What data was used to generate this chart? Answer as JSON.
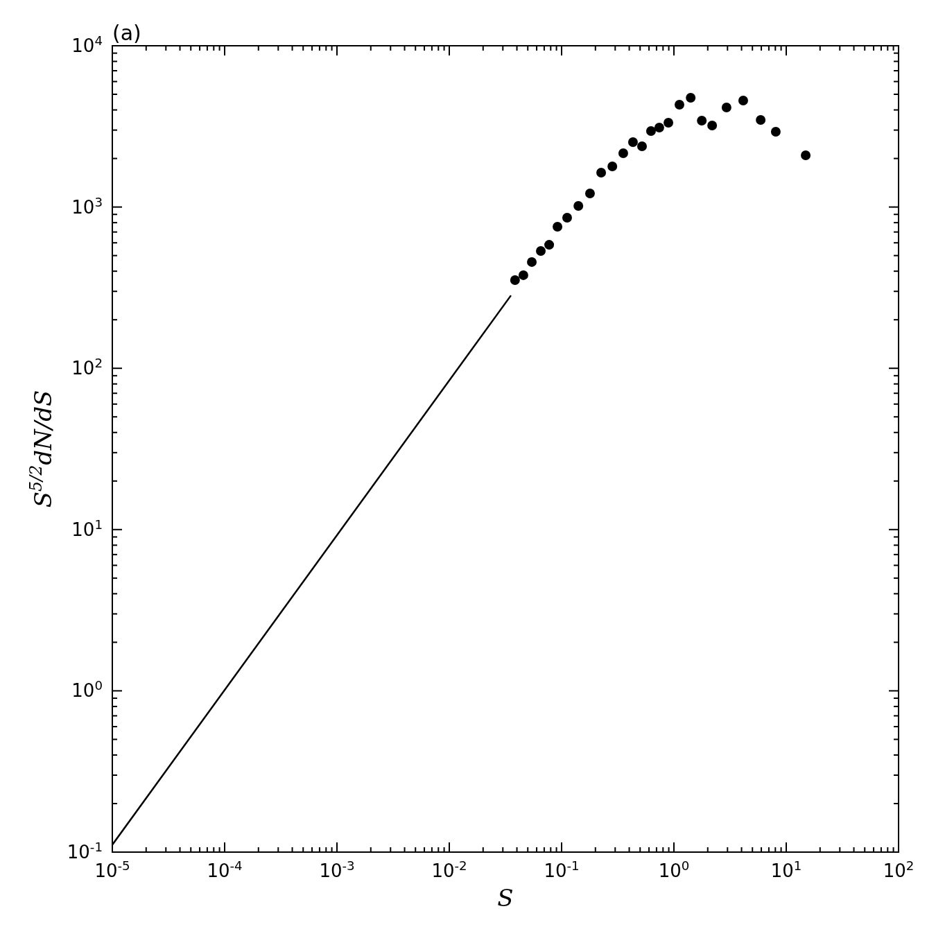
{
  "chart_data": {
    "type": "scatter",
    "xlabel": "S",
    "ylabel": "S$^{5/2}$dN/dS",
    "annotations": [
      "(a)"
    ],
    "log": "xy",
    "marker": "circle",
    "xlim": [
      1e-05,
      100
    ],
    "ylim": [
      0.1,
      10000
    ],
    "xticks": [
      {
        "value": 1e-05,
        "label": "10$^{-5}$"
      },
      {
        "value": 0.0001,
        "label": "10$^{-4}$"
      },
      {
        "value": 0.001,
        "label": "10$^{-3}$"
      },
      {
        "value": 0.01,
        "label": "10$^{-2}$"
      },
      {
        "value": 0.1,
        "label": "10$^{-1}$"
      },
      {
        "value": 1,
        "label": "10$^{0}$"
      },
      {
        "value": 10,
        "label": "10$^{1}$"
      },
      {
        "value": 100,
        "label": "10$^{2}$"
      }
    ],
    "yticks": [
      {
        "value": 0.1,
        "label": "10$^{-1}$"
      },
      {
        "value": 1,
        "label": "10$^{0}$"
      },
      {
        "value": 10,
        "label": "10$^{1}$"
      },
      {
        "value": 100,
        "label": "10$^{2}$"
      },
      {
        "value": 1000,
        "label": "10$^{3}$"
      },
      {
        "value": 10000,
        "label": "10$^{4}$"
      }
    ],
    "series": [
      {
        "color": "#000000",
        "x": [
          0.0385,
          0.0457,
          0.0543,
          0.0653,
          0.0775,
          0.0919,
          0.112,
          0.141,
          0.179,
          0.225,
          0.283,
          0.354,
          0.432,
          0.52,
          0.625,
          0.741,
          0.893,
          1.12,
          1.41,
          1.77,
          2.19,
          2.94,
          4.14,
          5.92,
          8.07,
          14.9
        ],
        "values": [
          352,
          378,
          456,
          534,
          583,
          755,
          859,
          1016,
          1214,
          1633,
          1786,
          2157,
          2525,
          2380,
          2958,
          3110,
          3334,
          4310,
          4760,
          3433,
          3203,
          4143,
          4576,
          3467,
          2931,
          2094
        ]
      },
      {
        "type": "line",
        "color": "#000000",
        "marker": "none",
        "line_style": "solid",
        "x": [
          1e-05,
          0.0354
        ],
        "values": [
          0.111,
          283
        ]
      }
    ]
  }
}
